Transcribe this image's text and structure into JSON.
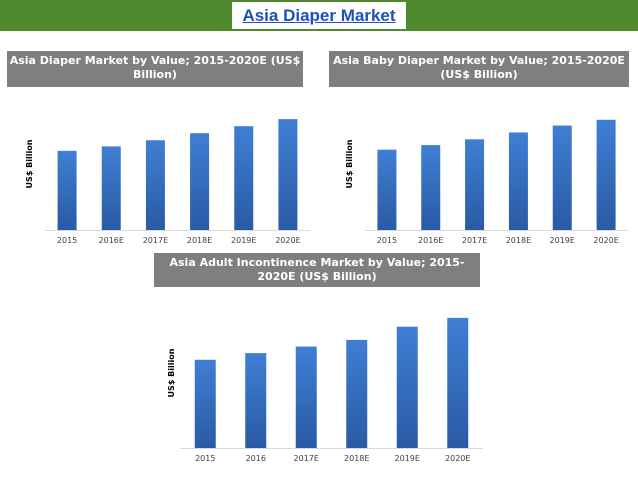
{
  "page": {
    "title": "Asia Diaper Market",
    "colors": {
      "header_bar": "#4e8a2d",
      "title_text": "#1f4fbf",
      "chart_header": "#7f7f7f",
      "bar_top": "#3f7fd4",
      "bar_bottom": "#2a5aa4"
    }
  },
  "chart_data": [
    {
      "type": "bar",
      "title": "Asia Diaper Market by Value; 2015-2020E (US$ Billion)",
      "ylabel": "US$ Billion",
      "xlabel": "",
      "categories": [
        "2015",
        "2016E",
        "2017E",
        "2018E",
        "2019E",
        "2020E"
      ],
      "values": [
        9.0,
        9.5,
        10.2,
        11.0,
        11.8,
        12.6
      ],
      "ylim": [
        0,
        15
      ],
      "grid": false
    },
    {
      "type": "bar",
      "title": "Asia Baby Diaper Market by Value; 2015-2020E (US$ Billion)",
      "ylabel": "US$ Billion",
      "xlabel": "",
      "categories": [
        "2015",
        "2016E",
        "2017E",
        "2018E",
        "2019E",
        "2020E"
      ],
      "values": [
        7.0,
        7.4,
        7.9,
        8.5,
        9.1,
        9.6
      ],
      "ylim": [
        0,
        11.5
      ],
      "grid": false
    },
    {
      "type": "bar",
      "title": "Asia Adult Incontinence Market by Value; 2015-2020E (US$ Billion)",
      "ylabel": "US$ Billion",
      "xlabel": "",
      "categories": [
        "2015",
        "2016",
        "2017E",
        "2018E",
        "2019E",
        "2020E"
      ],
      "values": [
        2.0,
        2.15,
        2.3,
        2.45,
        2.75,
        2.95
      ],
      "ylim": [
        0,
        3.4
      ],
      "grid": false
    }
  ]
}
